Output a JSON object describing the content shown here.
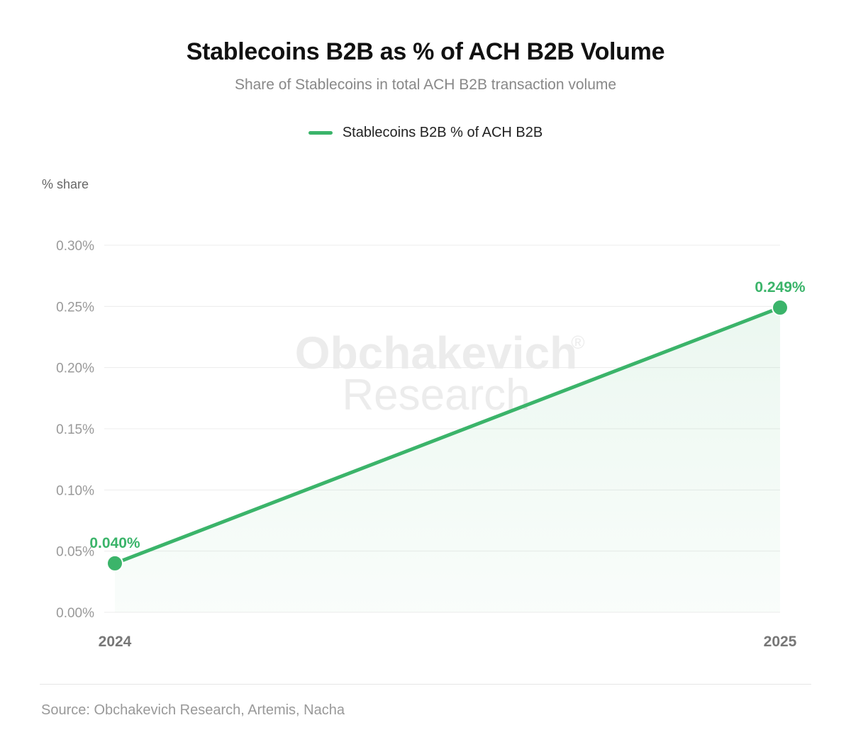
{
  "colors": {
    "series": "#3bb46a",
    "grid": "#ececec",
    "tick": "#999999",
    "x_tick": "#777777",
    "watermark": "#ececec"
  },
  "chart_data": {
    "type": "line",
    "title": "Stablecoins B2B as % of ACH B2B Volume",
    "subtitle": "Share of Stablecoins in total ACH B2B transaction volume",
    "ylabel": "% share",
    "xlabel": "",
    "categories": [
      "2024",
      "2025"
    ],
    "series": [
      {
        "name": "Stablecoins B2B % of ACH B2B",
        "values": [
          0.04,
          0.249
        ],
        "data_labels": [
          "0.040%",
          "0.249%"
        ]
      }
    ],
    "ylim": [
      0,
      0.3
    ],
    "y_ticks": [
      {
        "value": 0.0,
        "label": "0.00%"
      },
      {
        "value": 0.05,
        "label": "0.05%"
      },
      {
        "value": 0.1,
        "label": "0.10%"
      },
      {
        "value": 0.15,
        "label": "0.15%"
      },
      {
        "value": 0.2,
        "label": "0.20%"
      },
      {
        "value": 0.25,
        "label": "0.25%"
      },
      {
        "value": 0.3,
        "label": "0.30%"
      }
    ],
    "grid": true,
    "legend_position": "top-center",
    "area_fill": true
  },
  "watermark": {
    "line1": "Obchakevich",
    "mark": "®",
    "line2": "Research"
  },
  "source": "Source: Obchakevich Research, Artemis, Nacha"
}
